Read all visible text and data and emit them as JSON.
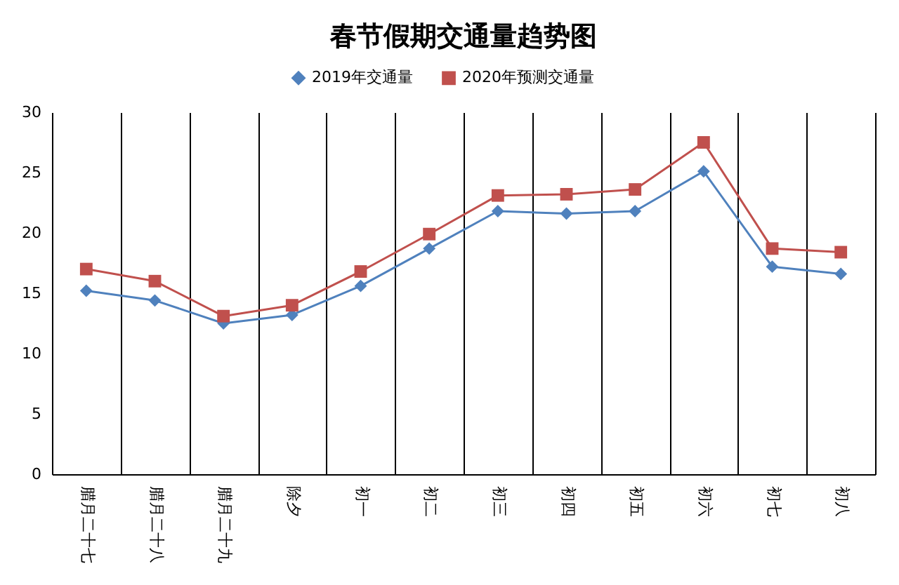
{
  "chart_data": {
    "type": "line",
    "title": "春节假期交通量趋势图",
    "categories": [
      "腊月二十七",
      "腊月二十八",
      "腊月二十九",
      "除夕",
      "初一",
      "初二",
      "初三",
      "初四",
      "初五",
      "初六",
      "初七",
      "初八"
    ],
    "series": [
      {
        "name": "2019年交通量",
        "color": "#4f81bd",
        "marker": "diamond",
        "values": [
          15.2,
          14.4,
          12.5,
          13.2,
          15.6,
          18.7,
          21.8,
          21.6,
          21.8,
          25.1,
          17.2,
          16.6
        ]
      },
      {
        "name": "2020年预测交通量",
        "color": "#c0504d",
        "marker": "square",
        "values": [
          17.0,
          16.0,
          13.1,
          14.0,
          16.8,
          19.9,
          23.1,
          23.2,
          23.6,
          27.5,
          18.7,
          18.4
        ]
      }
    ],
    "ylim": [
      0,
      30
    ],
    "yticks": [
      0,
      5,
      10,
      15,
      20,
      25,
      30
    ],
    "grid": "x",
    "legend": "top",
    "line_style": "solid"
  }
}
